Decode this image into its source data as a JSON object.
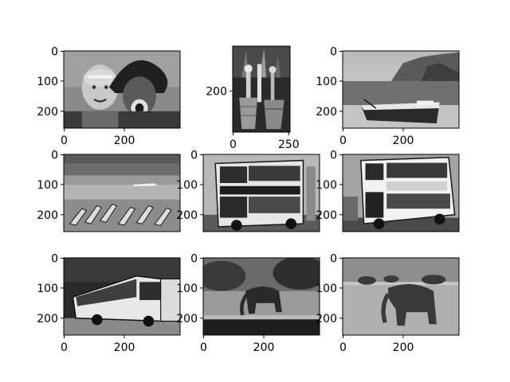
{
  "figure": {
    "background": "#ffffff"
  },
  "chart_data": [
    {
      "type": "image",
      "content": "two-people-portrait-feathered-headdress-icon",
      "xlim": [
        0,
        384
      ],
      "ylim": [
        256,
        0
      ],
      "x_ticks": [
        {
          "value": 0,
          "label": "0"
        },
        {
          "value": 200,
          "label": "200"
        }
      ],
      "y_ticks": [
        {
          "value": 0,
          "label": "0"
        },
        {
          "value": 100,
          "label": "100"
        },
        {
          "value": 200,
          "label": "200"
        }
      ]
    },
    {
      "type": "image",
      "content": "market-baskets-with-sticks-icon",
      "xlim": [
        0,
        256
      ],
      "ylim": [
        384,
        0
      ],
      "x_ticks": [
        {
          "value": 0,
          "label": "0"
        },
        {
          "value": 250,
          "label": "250"
        }
      ],
      "y_ticks": [
        {
          "value": 200,
          "label": "200"
        }
      ]
    },
    {
      "type": "image",
      "content": "boat-on-beach-with-cliffs-icon",
      "xlim": [
        0,
        384
      ],
      "ylim": [
        256,
        0
      ],
      "x_ticks": [
        {
          "value": 0,
          "label": "0"
        },
        {
          "value": 200,
          "label": "200"
        }
      ],
      "y_ticks": [
        {
          "value": 0,
          "label": "0"
        },
        {
          "value": 100,
          "label": "100"
        },
        {
          "value": 200,
          "label": "200"
        }
      ]
    },
    {
      "type": "image",
      "content": "beach-with-sunbeds-and-ship-icon",
      "xlim": [
        0,
        384
      ],
      "ylim": [
        256,
        0
      ],
      "x_ticks": [],
      "y_ticks": [
        {
          "value": 0,
          "label": "0"
        },
        {
          "value": 100,
          "label": "100"
        },
        {
          "value": 200,
          "label": "200"
        }
      ]
    },
    {
      "type": "image",
      "content": "double-decker-bus-front-icon",
      "xlim": [
        0,
        384
      ],
      "ylim": [
        256,
        0
      ],
      "x_ticks": [],
      "y_ticks": [
        {
          "value": 0,
          "label": "0"
        },
        {
          "value": 100,
          "label": "100"
        },
        {
          "value": 200,
          "label": "200"
        }
      ]
    },
    {
      "type": "image",
      "content": "double-decker-bus-side-icon",
      "xlim": [
        0,
        384
      ],
      "ylim": [
        256,
        0
      ],
      "x_ticks": [],
      "y_ticks": [
        {
          "value": 0,
          "label": "0"
        },
        {
          "value": 100,
          "label": "100"
        },
        {
          "value": 200,
          "label": "200"
        }
      ]
    },
    {
      "type": "image",
      "content": "coach-bus-icon",
      "xlim": [
        0,
        384
      ],
      "ylim": [
        256,
        0
      ],
      "x_ticks": [
        {
          "value": 0,
          "label": "0"
        },
        {
          "value": 200,
          "label": "200"
        }
      ],
      "y_ticks": [
        {
          "value": 0,
          "label": "0"
        },
        {
          "value": 100,
          "label": "100"
        },
        {
          "value": 200,
          "label": "200"
        }
      ]
    },
    {
      "type": "image",
      "content": "elephant-at-waterhole-icon",
      "xlim": [
        0,
        384
      ],
      "ylim": [
        256,
        0
      ],
      "x_ticks": [
        {
          "value": 0,
          "label": "0"
        },
        {
          "value": 200,
          "label": "200"
        }
      ],
      "y_ticks": [
        {
          "value": 0,
          "label": "0"
        },
        {
          "value": 100,
          "label": "100"
        },
        {
          "value": 200,
          "label": "200"
        }
      ]
    },
    {
      "type": "image",
      "content": "elephant-on-savanna-icon",
      "xlim": [
        0,
        384
      ],
      "ylim": [
        256,
        0
      ],
      "x_ticks": [
        {
          "value": 0,
          "label": "0"
        },
        {
          "value": 200,
          "label": "200"
        }
      ],
      "y_ticks": [
        {
          "value": 0,
          "label": "0"
        },
        {
          "value": 100,
          "label": "100"
        },
        {
          "value": 200,
          "label": "200"
        }
      ]
    }
  ]
}
